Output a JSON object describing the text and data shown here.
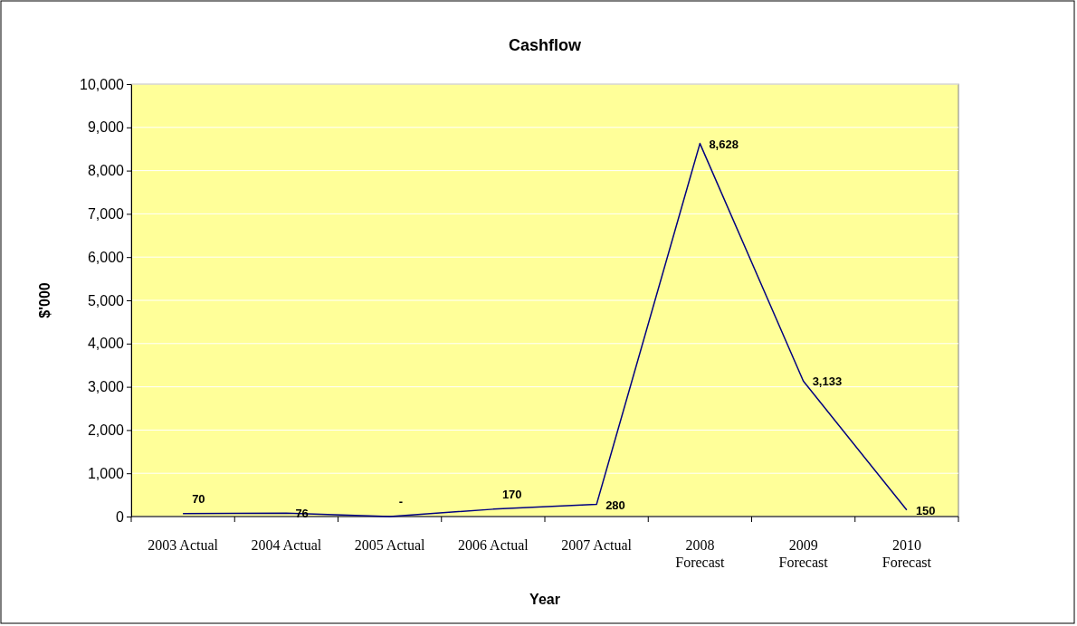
{
  "chart_data": {
    "type": "line",
    "title": "Cashflow",
    "xlabel": "Year",
    "ylabel": "$'000",
    "categories": [
      "2003 Actual",
      "2004 Actual",
      "2005 Actual",
      "2006 Actual",
      "2007 Actual",
      "2008 Forecast",
      "2009 Forecast",
      "2010 Forecast"
    ],
    "series": [
      {
        "color": "#000080",
        "values": [
          70,
          76,
          0,
          170,
          280,
          8628,
          3133,
          150
        ],
        "value_labels": [
          "70",
          "76",
          "-",
          "170",
          "280",
          "8,628",
          "3,133",
          "150"
        ]
      }
    ],
    "ylim": [
      0,
      10000
    ],
    "yticks": [
      {
        "value": 0,
        "label": "0"
      },
      {
        "value": 1000,
        "label": "1,000"
      },
      {
        "value": 2000,
        "label": "2,000"
      },
      {
        "value": 3000,
        "label": "3,000"
      },
      {
        "value": 4000,
        "label": "4,000"
      },
      {
        "value": 5000,
        "label": "5,000"
      },
      {
        "value": 6000,
        "label": "6,000"
      },
      {
        "value": 7000,
        "label": "7,000"
      },
      {
        "value": 8000,
        "label": "8,000"
      },
      {
        "value": 9000,
        "label": "9,000"
      },
      {
        "value": 10000,
        "label": "10,000"
      }
    ],
    "grid": "y",
    "marker": "none",
    "line_style": "solid"
  }
}
